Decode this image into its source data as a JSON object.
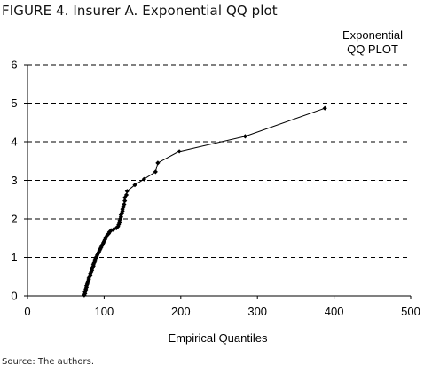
{
  "figure_title": "FIGURE 4. Insurer A. Exponential QQ plot",
  "source_note": "Source: The authors.",
  "chart_data": {
    "type": "line",
    "title_lines": [
      "Exponential",
      "QQ PLOT"
    ],
    "xlabel": "Empirical Quantiles",
    "ylabel": "",
    "xlim": [
      0,
      500
    ],
    "ylim": [
      0,
      6
    ],
    "x_ticks": [
      0,
      100,
      200,
      300,
      400,
      500
    ],
    "y_ticks": [
      0,
      1,
      2,
      3,
      4,
      5,
      6
    ],
    "grid": "horizontal dashed",
    "marker": "diamond",
    "series": [
      {
        "points": [
          [
            74,
            0.02
          ],
          [
            75,
            0.06
          ],
          [
            75,
            0.1
          ],
          [
            76,
            0.14
          ],
          [
            76,
            0.18
          ],
          [
            77,
            0.22
          ],
          [
            77,
            0.26
          ],
          [
            78,
            0.3
          ],
          [
            78,
            0.34
          ],
          [
            79,
            0.38
          ],
          [
            80,
            0.42
          ],
          [
            80,
            0.46
          ],
          [
            81,
            0.5
          ],
          [
            82,
            0.54
          ],
          [
            82,
            0.58
          ],
          [
            83,
            0.62
          ],
          [
            84,
            0.66
          ],
          [
            84,
            0.7
          ],
          [
            85,
            0.74
          ],
          [
            86,
            0.78
          ],
          [
            86,
            0.82
          ],
          [
            87,
            0.86
          ],
          [
            88,
            0.9
          ],
          [
            88,
            0.94
          ],
          [
            89,
            0.98
          ],
          [
            90,
            1.02
          ],
          [
            91,
            1.06
          ],
          [
            92,
            1.1
          ],
          [
            93,
            1.14
          ],
          [
            94,
            1.18
          ],
          [
            95,
            1.22
          ],
          [
            96,
            1.26
          ],
          [
            97,
            1.3
          ],
          [
            98,
            1.34
          ],
          [
            99,
            1.38
          ],
          [
            100,
            1.42
          ],
          [
            101,
            1.46
          ],
          [
            102,
            1.5
          ],
          [
            103,
            1.54
          ],
          [
            104,
            1.58
          ],
          [
            106,
            1.62
          ],
          [
            107,
            1.66
          ],
          [
            109,
            1.7
          ],
          [
            112,
            1.72
          ],
          [
            116,
            1.76
          ],
          [
            118,
            1.8
          ],
          [
            119,
            1.85
          ],
          [
            120,
            1.9
          ],
          [
            120,
            1.95
          ],
          [
            121,
            2.0
          ],
          [
            122,
            2.05
          ],
          [
            122,
            2.1
          ],
          [
            123,
            2.15
          ],
          [
            124,
            2.2
          ],
          [
            124,
            2.25
          ],
          [
            125,
            2.3
          ],
          [
            126,
            2.38
          ],
          [
            127,
            2.47
          ],
          [
            127,
            2.55
          ],
          [
            129,
            2.62
          ],
          [
            130,
            2.72
          ],
          [
            140,
            2.88
          ],
          [
            152,
            3.03
          ],
          [
            167,
            3.22
          ],
          [
            170,
            3.45
          ],
          [
            198,
            3.75
          ],
          [
            284,
            4.14
          ],
          [
            388,
            4.87
          ]
        ]
      }
    ]
  }
}
